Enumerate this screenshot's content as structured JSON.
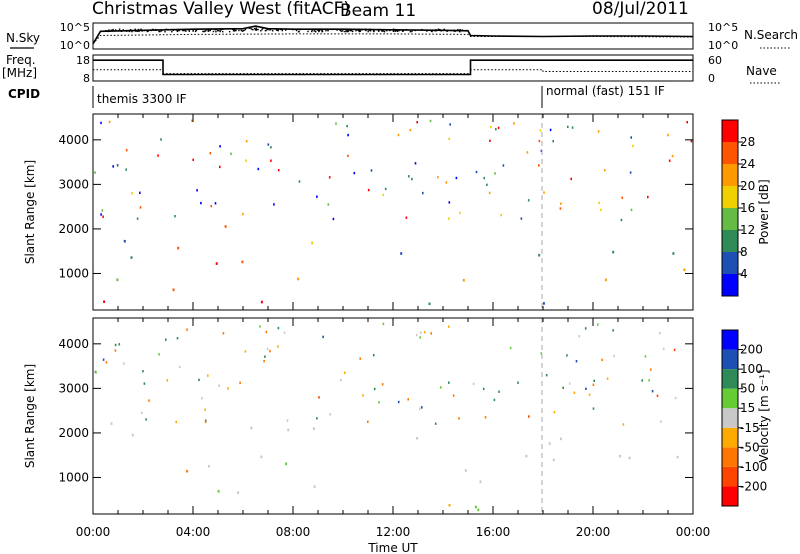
{
  "header": {
    "title": "Christmas Valley West (fitACF)",
    "beam": "Beam 11",
    "date": "08/Jul/2011"
  },
  "chart_data": [
    {
      "type": "line",
      "panel": "noise",
      "left_label": "N.Sky",
      "right_label": "N.Search",
      "left_ticks": [
        "10^5",
        "10^0"
      ],
      "right_ticks": [
        "10^5",
        "10^0"
      ],
      "x_ticks": [
        0,
        4,
        8,
        12,
        16,
        20,
        24
      ],
      "series": [
        {
          "name": "N.Sky",
          "x": [
            0,
            0.3,
            2,
            4,
            6,
            6.5,
            7,
            8,
            10,
            12,
            14,
            15,
            15.1,
            16,
            18,
            20,
            22,
            24
          ],
          "y": [
            1,
            3.4,
            3.6,
            3.8,
            3.9,
            4.4,
            3.9,
            3.8,
            3.8,
            3.7,
            3.6,
            3.5,
            2.6,
            2.5,
            2.4,
            2.5,
            2.5,
            2.4
          ]
        },
        {
          "name": "N.Search",
          "x": [
            0,
            0.3,
            4,
            8,
            12,
            15,
            15.1,
            20,
            24
          ],
          "y": [
            1,
            2.6,
            2.8,
            2.9,
            2.9,
            2.8,
            2.4,
            2.4,
            2.3
          ]
        }
      ]
    },
    {
      "type": "line",
      "panel": "frequency",
      "left_label": "Freq.",
      "left_unit": "[MHz]",
      "right_label": "Nave",
      "left_ticks": [
        18,
        8
      ],
      "right_ticks": [
        60,
        0
      ],
      "series": [
        {
          "name": "Freq.",
          "x": [
            0,
            2.8,
            2.8,
            15.1,
            15.1,
            24
          ],
          "y": [
            16,
            16,
            10.5,
            10.5,
            16,
            16
          ]
        },
        {
          "name": "Nave",
          "x": [
            0,
            2.8,
            2.8,
            15.1,
            15.1,
            18,
            18,
            24
          ],
          "y": [
            26,
            26,
            17,
            17,
            26,
            26,
            22,
            22
          ]
        }
      ]
    },
    {
      "type": "table",
      "panel": "cpid",
      "label": "CPID",
      "segments": [
        {
          "start": 0,
          "end": 18,
          "name": "themis 3300 IF"
        },
        {
          "start": 18,
          "end": 24,
          "name": "normal (fast) 151 IF"
        }
      ]
    },
    {
      "type": "heatmap",
      "panel": "power",
      "ylabel": "Slant Range [km]",
      "xlabel": "Time UT",
      "x_ticks": [
        "00:00",
        "04:00",
        "08:00",
        "12:00",
        "16:00",
        "20:00",
        "00:00"
      ],
      "xlim": [
        0,
        24
      ],
      "ylim": [
        180,
        4580
      ],
      "y_ticks": [
        1000,
        2000,
        3000,
        4000
      ],
      "colorbar": {
        "label": "Power [dB]",
        "ticks": [
          "4",
          "8",
          "12",
          "16",
          "20",
          "24",
          "28"
        ],
        "colors": [
          "#0000ff",
          "#1e50b4",
          "#2e8b57",
          "#66bb44",
          "#f0d000",
          "#ff9900",
          "#ff5500",
          "#ff0000"
        ],
        "range": [
          0,
          32
        ]
      },
      "scatter_regions": [
        {
          "t": [
            0.0,
            2.5
          ],
          "r": [
            1200,
            2200
          ],
          "level": 9
        },
        {
          "t": [
            0.2,
            2.5
          ],
          "r": [
            700,
            1300
          ],
          "level": 10
        },
        {
          "t": [
            2.5,
            5.5
          ],
          "r": [
            500,
            1400
          ],
          "level": 27
        },
        {
          "t": [
            3.0,
            6.5
          ],
          "r": [
            1200,
            1800
          ],
          "level": 24
        },
        {
          "t": [
            5.0,
            7.0
          ],
          "r": [
            1800,
            2300
          ],
          "level": 26
        },
        {
          "t": [
            5.5,
            8.5
          ],
          "r": [
            600,
            1100
          ],
          "level": 26
        },
        {
          "t": [
            7.0,
            9.0
          ],
          "r": [
            1600,
            2000
          ],
          "level": 14
        },
        {
          "t": [
            0.2,
            10.0
          ],
          "r": [
            200,
            420
          ],
          "level": 29
        },
        {
          "t": [
            12.5,
            15.5
          ],
          "r": [
            700,
            1300
          ],
          "level": 23
        },
        {
          "t": [
            11.5,
            16.5
          ],
          "r": [
            1400,
            1800
          ],
          "level": 9
        },
        {
          "t": [
            16.0,
            24.0
          ],
          "r": [
            1300,
            1800
          ],
          "level": 10
        },
        {
          "t": [
            18.0,
            24.0
          ],
          "r": [
            750,
            1250
          ],
          "level": 24
        },
        {
          "t": [
            12.0,
            24.0
          ],
          "r": [
            200,
            420
          ],
          "level": 8
        }
      ]
    },
    {
      "type": "heatmap",
      "panel": "velocity",
      "ylabel": "Slant Range [km]",
      "xlabel": "Time UT",
      "x_ticks": [
        "00:00",
        "04:00",
        "08:00",
        "12:00",
        "16:00",
        "20:00",
        "00:00"
      ],
      "xlim": [
        0,
        24
      ],
      "ylim": [
        180,
        4580
      ],
      "y_ticks": [
        1000,
        2000,
        3000,
        4000
      ],
      "colorbar": {
        "label": "Velocity [m s⁻¹]",
        "ticks": [
          "200",
          "100",
          "50",
          "15",
          "-15",
          "-50",
          "-100",
          "-200"
        ],
        "colors": [
          "#0000ff",
          "#1e50b4",
          "#2e8b57",
          "#66cc33",
          "#c8c8c8",
          "#ffaa00",
          "#ff7700",
          "#ff4400",
          "#ff0000"
        ],
        "range": [
          -250,
          250
        ]
      },
      "scatter_regions": [
        {
          "t": [
            0.0,
            2.5
          ],
          "r": [
            1200,
            2300
          ],
          "level": 0
        },
        {
          "t": [
            2.5,
            9.0
          ],
          "r": [
            500,
            2200
          ],
          "level": 0
        },
        {
          "t": [
            6.0,
            8.5
          ],
          "r": [
            900,
            1600
          ],
          "level": -60
        },
        {
          "t": [
            3.0,
            6.0
          ],
          "r": [
            700,
            1000
          ],
          "level": -40
        },
        {
          "t": [
            8.5,
            24.0
          ],
          "r": [
            200,
            450
          ],
          "level": -45
        },
        {
          "t": [
            12.0,
            24.0
          ],
          "r": [
            800,
            2000
          ],
          "level": 0
        }
      ]
    }
  ]
}
